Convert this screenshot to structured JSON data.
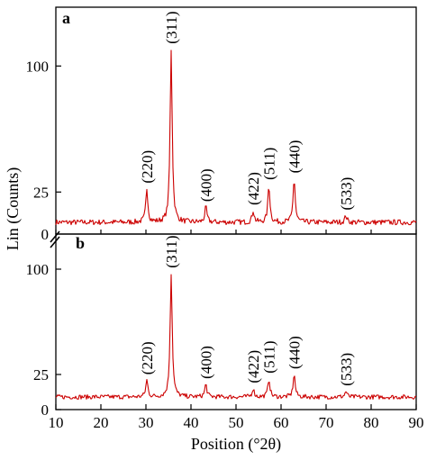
{
  "chart_data": {
    "type": "line",
    "xlabel": "Position (°2θ)",
    "ylabel": "Lin (Counts)",
    "xlim": [
      10,
      90
    ],
    "x_ticks": [
      "10",
      "20",
      "30",
      "40",
      "50",
      "60",
      "70",
      "80",
      "90"
    ],
    "series_color": "#cc0000",
    "panels": [
      {
        "label": "a",
        "ylim": [
          0,
          135
        ],
        "y_ticks": [
          {
            "value": 25,
            "label": "25"
          },
          {
            "value": 100,
            "label": "100"
          }
        ],
        "baseline": 7,
        "peaks": [
          {
            "x": 30.2,
            "y": 27,
            "label": "(220)"
          },
          {
            "x": 35.6,
            "y": 110,
            "label": "(311)"
          },
          {
            "x": 43.3,
            "y": 16,
            "label": "(400)"
          },
          {
            "x": 53.8,
            "y": 14,
            "label": "(422)"
          },
          {
            "x": 57.3,
            "y": 29,
            "label": "(511)"
          },
          {
            "x": 62.9,
            "y": 33,
            "label": "(440)"
          },
          {
            "x": 74.4,
            "y": 11,
            "label": "(533)"
          }
        ]
      },
      {
        "label": "b",
        "ylim": [
          0,
          125
        ],
        "y_ticks": [
          {
            "value": 0,
            "label": "0"
          },
          {
            "value": 25,
            "label": "25"
          },
          {
            "value": 100,
            "label": "100"
          }
        ],
        "baseline": 9,
        "peaks": [
          {
            "x": 30.2,
            "y": 21,
            "label": "(220)"
          },
          {
            "x": 35.6,
            "y": 97,
            "label": "(311)"
          },
          {
            "x": 43.3,
            "y": 18,
            "label": "(400)"
          },
          {
            "x": 53.8,
            "y": 15,
            "label": "(422)"
          },
          {
            "x": 57.3,
            "y": 22,
            "label": "(511)"
          },
          {
            "x": 62.9,
            "y": 25,
            "label": "(440)"
          },
          {
            "x": 74.4,
            "y": 13,
            "label": "(533)"
          }
        ]
      }
    ]
  }
}
